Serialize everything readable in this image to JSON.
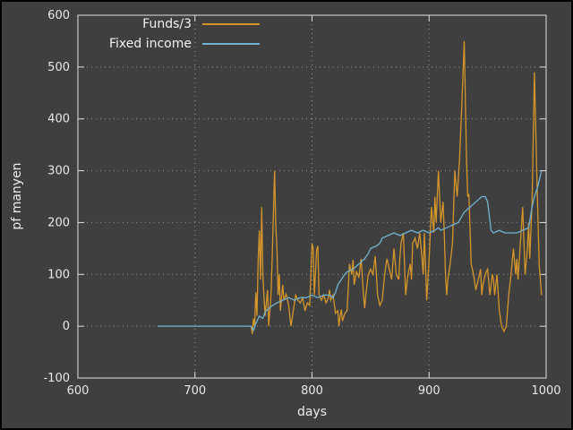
{
  "chart_data": {
    "type": "line",
    "title": "",
    "xlabel": "days",
    "ylabel": "pf manyen",
    "xlim": [
      600,
      1000
    ],
    "ylim": [
      -100,
      600
    ],
    "xticks": [
      600,
      700,
      800,
      900,
      1000
    ],
    "yticks": [
      -100,
      0,
      100,
      200,
      300,
      400,
      500,
      600
    ],
    "grid": true,
    "legend_position": "top-center-inside",
    "background": "#3f3f3f",
    "series": [
      {
        "name": "Funds/3",
        "color": "#d4952b",
        "x": [
          748,
          749,
          750,
          751,
          752,
          753,
          754,
          755,
          756,
          757,
          758,
          759,
          760,
          762,
          763,
          765,
          766,
          768,
          769,
          770,
          771,
          772,
          773,
          775,
          776,
          778,
          780,
          782,
          784,
          786,
          788,
          790,
          792,
          794,
          796,
          798,
          800,
          801,
          802,
          804,
          805,
          806,
          808,
          810,
          812,
          814,
          815,
          816,
          818,
          820,
          822,
          823,
          824,
          825,
          826,
          828,
          830,
          832,
          834,
          835,
          836,
          838,
          840,
          842,
          844,
          845,
          846,
          848,
          850,
          852,
          854,
          855,
          856,
          858,
          860,
          862,
          864,
          866,
          868,
          870,
          872,
          874,
          875,
          876,
          878,
          880,
          882,
          884,
          885,
          886,
          888,
          890,
          892,
          894,
          895,
          896,
          898,
          900,
          902,
          904,
          905,
          906,
          908,
          910,
          912,
          913,
          914,
          915,
          916,
          918,
          920,
          922,
          924,
          926,
          928,
          930,
          932,
          933,
          934,
          936,
          938,
          940,
          942,
          944,
          945,
          946,
          948,
          950,
          952,
          954,
          955,
          956,
          958,
          960,
          962,
          964,
          966,
          968,
          970,
          972,
          974,
          975,
          976,
          978,
          980,
          982,
          984,
          985,
          986,
          988,
          990,
          992,
          994,
          996
        ],
        "y": [
          0,
          -15,
          15,
          0,
          65,
          20,
          130,
          185,
          90,
          230,
          100,
          55,
          20,
          70,
          0,
          60,
          130,
          300,
          195,
          150,
          60,
          100,
          30,
          80,
          50,
          62,
          40,
          0,
          30,
          60,
          50,
          45,
          55,
          30,
          45,
          40,
          160,
          150,
          60,
          148,
          155,
          62,
          50,
          60,
          45,
          55,
          70,
          50,
          60,
          25,
          30,
          0,
          20,
          32,
          10,
          25,
          30,
          120,
          100,
          128,
          80,
          105,
          95,
          130,
          60,
          35,
          60,
          100,
          110,
          100,
          135,
          100,
          60,
          40,
          50,
          100,
          130,
          110,
          90,
          150,
          100,
          90,
          130,
          160,
          180,
          60,
          100,
          120,
          90,
          160,
          170,
          150,
          180,
          130,
          100,
          180,
          50,
          130,
          230,
          180,
          250,
          200,
          300,
          200,
          240,
          180,
          100,
          60,
          90,
          120,
          160,
          300,
          250,
          320,
          430,
          550,
          320,
          250,
          255,
          120,
          100,
          70,
          90,
          110,
          60,
          80,
          100,
          110,
          60,
          100,
          90,
          60,
          100,
          30,
          0,
          -10,
          0,
          60,
          100,
          150,
          100,
          130,
          90,
          160,
          230,
          100,
          150,
          200,
          130,
          240,
          490,
          300,
          120,
          60
        ]
      },
      {
        "name": "Fixed income",
        "color": "#6fb3d2",
        "x": [
          668,
          748,
          750,
          752,
          755,
          758,
          760,
          765,
          770,
          775,
          780,
          785,
          790,
          795,
          800,
          805,
          810,
          815,
          818,
          820,
          822,
          825,
          828,
          830,
          835,
          840,
          845,
          848,
          850,
          855,
          858,
          860,
          865,
          870,
          875,
          880,
          885,
          890,
          895,
          900,
          905,
          908,
          910,
          915,
          920,
          925,
          930,
          935,
          940,
          945,
          948,
          950,
          953,
          955,
          960,
          965,
          970,
          975,
          980,
          985,
          988,
          990,
          993,
          996
        ],
        "y": [
          0,
          0,
          -8,
          5,
          20,
          15,
          28,
          38,
          45,
          50,
          55,
          50,
          55,
          55,
          60,
          55,
          60,
          60,
          55,
          65,
          80,
          90,
          100,
          105,
          110,
          120,
          130,
          140,
          150,
          155,
          160,
          170,
          175,
          180,
          175,
          180,
          185,
          180,
          185,
          180,
          185,
          190,
          185,
          190,
          195,
          200,
          220,
          230,
          240,
          250,
          250,
          240,
          185,
          180,
          185,
          180,
          180,
          180,
          185,
          190,
          230,
          250,
          270,
          300
        ]
      }
    ]
  },
  "style": {
    "text_color": "#ececec",
    "grid_color": "#8f8f8f",
    "axis_color": "#e0e0e0",
    "frame_border_color": "#000000"
  }
}
